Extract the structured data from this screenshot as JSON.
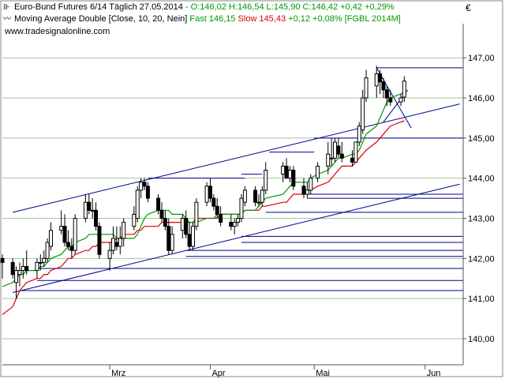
{
  "header": {
    "line1_prefix": "Euro-Bund Futures 6/14 Täglich",
    "line1_date": "27.05.2014",
    "line1_ohlc": "- O:146,02 H:146,54 L:145,90 C:146,42 +0,42 +0,29%",
    "line2_prefix": "Moving Average Double [Close, 10, 20, Nein]",
    "fast_label": "Fast 146,15",
    "slow_label": "Slow 145,43",
    "line2_suffix": "+0,12 +0,08% [FGBL 2014M]",
    "url": "www.tradesignalonline.com",
    "currency": "€"
  },
  "colors": {
    "candle": "#000000",
    "fast_ma": "#009900",
    "slow_ma": "#dd0000",
    "trendline": "#00008b",
    "hline": "#00008b",
    "gridline": "#a0c8a0",
    "up_body": "#ffffff",
    "down_body": "#000000"
  },
  "icons": {
    "line1": "bar-chart-icon",
    "line2": "moving-average-icon"
  },
  "chart_data": {
    "type": "candlestick",
    "title": "Euro-Bund Futures 6/14 Täglich",
    "y_ticks": [
      "147,00",
      "146,00",
      "145,00",
      "144,00",
      "143,00",
      "142,00",
      "141,00",
      "140,00"
    ],
    "y_tick_values": [
      147,
      146,
      145,
      144,
      143,
      142,
      141,
      140
    ],
    "ylim": [
      139.35,
      147.85
    ],
    "x_ticks": [
      "Mrz",
      "Apr",
      "Mai",
      "Jun"
    ],
    "x_tick_dates": [
      "2014-03-03",
      "2014-04-01",
      "2014-05-01",
      "2014-06-02"
    ],
    "xlim": [
      "2014-01-31",
      "2014-06-13"
    ],
    "dates": [
      "2014-01-31",
      "2014-02-03",
      "2014-02-04",
      "2014-02-05",
      "2014-02-06",
      "2014-02-07",
      "2014-02-10",
      "2014-02-11",
      "2014-02-12",
      "2014-02-13",
      "2014-02-14",
      "2014-02-17",
      "2014-02-18",
      "2014-02-19",
      "2014-02-20",
      "2014-02-21",
      "2014-02-24",
      "2014-02-25",
      "2014-02-26",
      "2014-02-27",
      "2014-02-28",
      "2014-03-03",
      "2014-03-04",
      "2014-03-05",
      "2014-03-06",
      "2014-03-07",
      "2014-03-10",
      "2014-03-11",
      "2014-03-12",
      "2014-03-13",
      "2014-03-14",
      "2014-03-17",
      "2014-03-18",
      "2014-03-19",
      "2014-03-20",
      "2014-03-21",
      "2014-03-24",
      "2014-03-25",
      "2014-03-26",
      "2014-03-27",
      "2014-03-28",
      "2014-03-31",
      "2014-04-01",
      "2014-04-02",
      "2014-04-03",
      "2014-04-04",
      "2014-04-07",
      "2014-04-08",
      "2014-04-09",
      "2014-04-10",
      "2014-04-11",
      "2014-04-14",
      "2014-04-15",
      "2014-04-16",
      "2014-04-17",
      "2014-04-22",
      "2014-04-23",
      "2014-04-24",
      "2014-04-25",
      "2014-04-28",
      "2014-04-29",
      "2014-04-30",
      "2014-05-02",
      "2014-05-05",
      "2014-05-06",
      "2014-05-07",
      "2014-05-08",
      "2014-05-09",
      "2014-05-12",
      "2014-05-13",
      "2014-05-14",
      "2014-05-15",
      "2014-05-16",
      "2014-05-19",
      "2014-05-20",
      "2014-05-21",
      "2014-05-22",
      "2014-05-23",
      "2014-05-26",
      "2014-05-27"
    ],
    "open": [
      142.0,
      141.9,
      141.4,
      141.6,
      141.7,
      141.8,
      141.7,
      141.9,
      141.9,
      142.0,
      142.3,
      142.7,
      142.8,
      142.4,
      142.3,
      142.2,
      143.0,
      143.4,
      143.2,
      143.2,
      142.8,
      142.0,
      142.2,
      142.4,
      142.3,
      142.5,
      142.8,
      143.0,
      143.7,
      143.9,
      143.8,
      143.5,
      143.2,
      143.0,
      142.8,
      142.2,
      142.7,
      143.0,
      142.6,
      142.3,
      142.8,
      143.4,
      143.8,
      143.5,
      143.3,
      143.1,
      142.9,
      142.8,
      142.9,
      143.0,
      143.4,
      143.7,
      143.4,
      143.4,
      143.7,
      144.1,
      144.3,
      144.0,
      144.2,
      143.8,
      143.6,
      143.7,
      144.0,
      144.3,
      144.5,
      144.5,
      144.8,
      144.6,
      144.5,
      144.4,
      144.9,
      145.2,
      146.0,
      146.3,
      146.6,
      146.4,
      146.2,
      146.0,
      145.9,
      146.02
    ],
    "high": [
      142.1,
      142.0,
      141.8,
      141.9,
      142.0,
      142.2,
      142.0,
      142.1,
      142.2,
      142.5,
      142.9,
      143.2,
      143.1,
      142.7,
      142.5,
      143.1,
      143.6,
      143.6,
      143.5,
      143.4,
      142.9,
      142.4,
      142.8,
      142.8,
      142.8,
      143.0,
      143.3,
      143.8,
      144.0,
      144.0,
      143.9,
      143.6,
      143.4,
      143.2,
      143.0,
      142.8,
      143.1,
      143.2,
      142.9,
      142.9,
      143.5,
      143.9,
      144.0,
      143.6,
      143.5,
      143.3,
      143.1,
      143.0,
      143.1,
      143.6,
      143.8,
      143.8,
      143.6,
      143.8,
      144.4,
      144.4,
      144.5,
      144.3,
      144.3,
      144.0,
      143.9,
      144.1,
      144.4,
      144.9,
      145.0,
      145.0,
      145.0,
      144.9,
      144.7,
      144.9,
      145.4,
      146.2,
      146.7,
      146.8,
      146.7,
      146.5,
      146.3,
      146.2,
      146.1,
      146.54
    ],
    "low": [
      141.5,
      141.5,
      141.0,
      141.3,
      141.5,
      141.6,
      141.5,
      141.7,
      141.8,
      141.9,
      142.2,
      142.6,
      142.3,
      142.2,
      142.0,
      142.1,
      142.9,
      143.1,
      143.0,
      142.7,
      142.0,
      141.7,
      142.1,
      142.2,
      142.1,
      142.3,
      142.7,
      142.9,
      143.5,
      143.7,
      143.4,
      143.1,
      142.9,
      142.7,
      142.1,
      142.1,
      142.5,
      142.5,
      142.2,
      142.2,
      142.7,
      143.3,
      143.4,
      143.2,
      143.0,
      142.8,
      142.7,
      142.6,
      142.8,
      142.9,
      143.3,
      143.3,
      143.3,
      143.3,
      143.6,
      143.9,
      144.0,
      143.9,
      143.7,
      143.5,
      143.5,
      143.6,
      143.9,
      144.1,
      144.3,
      144.4,
      144.5,
      144.4,
      144.3,
      144.4,
      144.8,
      145.1,
      145.9,
      146.0,
      146.1,
      146.0,
      145.8,
      145.8,
      145.8,
      145.9
    ],
    "close": [
      141.9,
      141.6,
      141.7,
      141.7,
      141.8,
      141.7,
      141.9,
      141.9,
      142.0,
      142.4,
      142.7,
      142.8,
      142.4,
      142.3,
      142.2,
      143.0,
      143.4,
      143.2,
      143.2,
      142.8,
      142.1,
      142.2,
      142.5,
      142.3,
      142.5,
      142.9,
      143.1,
      143.7,
      143.9,
      143.8,
      143.5,
      143.2,
      143.0,
      142.8,
      142.2,
      142.6,
      143.0,
      142.6,
      142.3,
      142.8,
      143.4,
      143.8,
      143.5,
      143.3,
      143.1,
      142.9,
      142.8,
      142.9,
      143.0,
      143.5,
      143.7,
      143.4,
      143.4,
      143.7,
      144.2,
      144.3,
      144.0,
      144.2,
      143.8,
      143.6,
      143.7,
      144.0,
      144.3,
      144.6,
      144.5,
      144.9,
      144.6,
      144.5,
      144.4,
      144.9,
      145.3,
      146.0,
      146.5,
      146.6,
      146.4,
      146.2,
      146.0,
      145.9,
      146.0,
      146.42
    ],
    "fast_ma": [
      141.3,
      141.4,
      141.5,
      141.6,
      141.6,
      141.7,
      141.7,
      141.8,
      141.8,
      141.9,
      142.0,
      142.1,
      142.2,
      142.3,
      142.3,
      142.4,
      142.5,
      142.6,
      142.6,
      142.6,
      142.6,
      142.6,
      142.6,
      142.5,
      142.5,
      142.5,
      142.5,
      142.6,
      142.8,
      143.0,
      143.1,
      143.2,
      143.2,
      143.2,
      143.2,
      143.1,
      143.1,
      143.0,
      142.9,
      142.9,
      142.9,
      143.0,
      143.0,
      143.0,
      143.1,
      143.1,
      143.1,
      143.1,
      143.1,
      143.1,
      143.2,
      143.2,
      143.3,
      143.4,
      143.5,
      143.6,
      143.7,
      143.8,
      143.9,
      143.9,
      143.9,
      144.0,
      144.1,
      144.2,
      144.3,
      144.4,
      144.5,
      144.5,
      144.6,
      144.6,
      144.7,
      144.9,
      145.1,
      145.3,
      145.5,
      145.7,
      145.9,
      146.0,
      146.1,
      146.15
    ],
    "slow_ma": [
      140.6,
      140.8,
      141.0,
      141.2,
      141.3,
      141.4,
      141.5,
      141.5,
      141.6,
      141.6,
      141.7,
      141.8,
      141.9,
      142.0,
      142.0,
      142.1,
      142.2,
      142.2,
      142.3,
      142.3,
      142.4,
      142.4,
      142.4,
      142.5,
      142.5,
      142.6,
      142.6,
      142.7,
      142.7,
      142.8,
      142.8,
      142.8,
      142.9,
      142.9,
      142.9,
      142.9,
      142.9,
      142.9,
      142.9,
      142.9,
      143.0,
      143.0,
      143.0,
      143.0,
      143.0,
      143.1,
      143.1,
      143.1,
      143.1,
      143.1,
      143.2,
      143.2,
      143.2,
      143.3,
      143.3,
      143.4,
      143.4,
      143.5,
      143.6,
      143.6,
      143.7,
      143.7,
      143.8,
      143.9,
      144.0,
      144.1,
      144.2,
      144.3,
      144.3,
      144.4,
      144.5,
      144.6,
      144.7,
      144.9,
      145.0,
      145.1,
      145.2,
      145.3,
      145.4,
      145.43
    ],
    "trendlines": [
      {
        "from": [
          "2014-02-03",
          143.15
        ],
        "to": [
          "2014-06-12",
          145.85
        ]
      },
      {
        "from": [
          "2014-02-03",
          141.15
        ],
        "to": [
          "2014-06-12",
          143.85
        ]
      },
      {
        "from": [
          "2014-05-19",
          146.75
        ],
        "to": [
          "2014-05-29",
          145.25
        ]
      },
      {
        "from": [
          "2014-05-21",
          145.4
        ],
        "to": [
          "2014-05-28",
          146.2
        ]
      }
    ],
    "h_levels": [
      {
        "y": 146.75,
        "from": "2014-05-19"
      },
      {
        "y": 145.0,
        "from": "2014-05-01"
      },
      {
        "y": 144.65,
        "from": "2014-04-18",
        "to": "2014-05-01"
      },
      {
        "y": 144.0,
        "from": "2014-03-14",
        "to": "2014-04-11"
      },
      {
        "y": 144.1,
        "from": "2014-04-10",
        "to": "2014-04-16"
      },
      {
        "y": 143.6,
        "from": "2014-04-29"
      },
      {
        "y": 143.5,
        "from": "2014-04-29"
      },
      {
        "y": 143.15,
        "from": "2014-04-17"
      },
      {
        "y": 142.55,
        "from": "2014-04-10"
      },
      {
        "y": 142.4,
        "from": "2014-04-10"
      },
      {
        "y": 142.2,
        "from": "2014-03-25"
      },
      {
        "y": 142.05,
        "from": "2014-03-25"
      },
      {
        "y": 141.75,
        "from": "2014-02-10"
      },
      {
        "y": 141.45,
        "from": "2014-02-10"
      },
      {
        "y": 141.2,
        "from": "2014-02-05"
      }
    ],
    "grid": true,
    "legend": "top-left"
  }
}
